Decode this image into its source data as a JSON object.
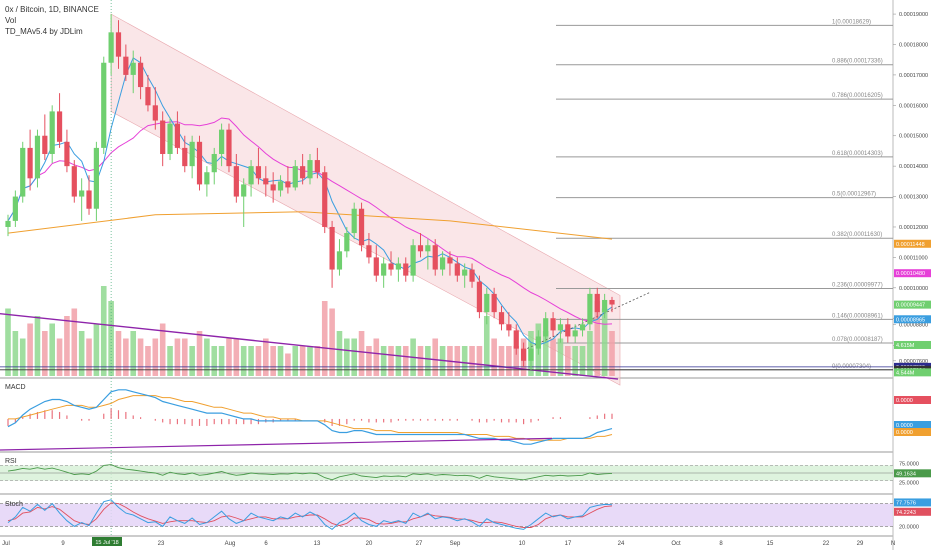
{
  "header": {
    "symbol_line": "0x / Bitcoin, 1D, BINANCE",
    "vol_label": "Vol",
    "indicator_label": "TD_MAv5.4 by JDLim"
  },
  "panes": {
    "macd_label": "MACD",
    "rsi_label": "RSI",
    "stoch_label": "Stoch"
  },
  "colors": {
    "up": "#6fcf6f",
    "down": "#e5505f",
    "up_vol": "#8fd88f",
    "down_vol": "#f1a0a8",
    "ma_blue": "#3a9ee0",
    "ma_magenta": "#e640d8",
    "ma_orange": "#f0a030",
    "trendline": "#8e24aa",
    "channel_fill": "#f7d6d8",
    "rsi_fill": "#d6f0d6",
    "stoch_fill": "#e4d4f7"
  },
  "x_axis": {
    "labels": [
      "Jul",
      "9",
      "15 Jul '18",
      "23",
      "Aug",
      "6",
      "13",
      "20",
      "27",
      "Sep",
      "10",
      "17",
      "24",
      "Oct",
      "8",
      "15",
      "22",
      "29",
      "N"
    ]
  },
  "price_axis": {
    "ticks": [
      "0.00019000",
      "0.00018000",
      "0.00017000",
      "0.00016000",
      "0.00015000",
      "0.00014000",
      "0.00013000",
      "0.00012000",
      "0.00011000",
      "0.00010000",
      "0.00009000",
      "0.00008800",
      "0.00008100",
      "0.00007600"
    ]
  },
  "fib_levels": [
    {
      "label": "1(0.00018629)",
      "value": 0.00018629
    },
    {
      "label": "0.886(0.00017336)",
      "value": 0.00017336
    },
    {
      "label": "0.786(0.00016205)",
      "value": 0.00016205
    },
    {
      "label": "0.618(0.00014303)",
      "value": 0.00014303
    },
    {
      "label": "0.5(0.00012967)",
      "value": 0.00012967
    },
    {
      "label": "0.382(0.00011630)",
      "value": 0.0001163
    },
    {
      "label": "0.236(0.00009977)",
      "value": 9.977e-05
    },
    {
      "label": "0.146(0.00008961)",
      "value": 8.961e-05
    },
    {
      "label": "0.078(0.00008187)",
      "value": 8.187e-05
    },
    {
      "label": "0(0.00007304)",
      "value": 7.304e-05
    }
  ],
  "price_tags": [
    {
      "text": "0.00011448",
      "color": "#f0a030"
    },
    {
      "text": "0.00010480",
      "color": "#e640d8"
    },
    {
      "text": "0.00009447",
      "color": "#6fcf6f"
    },
    {
      "text": "0.00008965",
      "color": "#3a9ee0"
    },
    {
      "text": "4.615M",
      "color": "#6fcf6f"
    },
    {
      "text": "0.00007399",
      "color": "#2b2b8f"
    },
    {
      "text": "0.00007304",
      "color": "#333333"
    },
    {
      "text": "4.544M",
      "color": "#6fcf6f"
    }
  ],
  "macd_tags": [
    {
      "text": "0.0000",
      "color": "#e5505f"
    },
    {
      "text": "0.0000",
      "color": "#3a9ee0"
    },
    {
      "text": "0.0000",
      "color": "#f0a030"
    }
  ],
  "rsi_axis": [
    "75.0000",
    "49.1634",
    "25.0000"
  ],
  "stoch_axis": [
    "80.0000",
    "77.7576",
    "74.2243",
    "20.0000"
  ],
  "chart_data": {
    "type": "candlestick",
    "title": "0x / Bitcoin, 1D, BINANCE",
    "ylim": [
      7.1e-05,
      0.000192
    ],
    "candles": [
      {
        "date": "Jul 1",
        "o": 0.00012,
        "h": 0.000124,
        "l": 0.000117,
        "c": 0.000122
      },
      {
        "date": "Jul 2",
        "o": 0.000122,
        "h": 0.000132,
        "l": 0.00012,
        "c": 0.00013
      },
      {
        "date": "Jul 3",
        "o": 0.00013,
        "h": 0.000148,
        "l": 0.000128,
        "c": 0.000146
      },
      {
        "date": "Jul 4",
        "o": 0.000146,
        "h": 0.000152,
        "l": 0.000132,
        "c": 0.000136
      },
      {
        "date": "Jul 5",
        "o": 0.000136,
        "h": 0.000152,
        "l": 0.000133,
        "c": 0.00015
      },
      {
        "date": "Jul 6",
        "o": 0.00015,
        "h": 0.000157,
        "l": 0.000142,
        "c": 0.000144
      },
      {
        "date": "Jul 7",
        "o": 0.000144,
        "h": 0.00016,
        "l": 0.000141,
        "c": 0.000158
      },
      {
        "date": "Jul 8",
        "o": 0.000158,
        "h": 0.000164,
        "l": 0.000146,
        "c": 0.000148
      },
      {
        "date": "Jul 9",
        "o": 0.000148,
        "h": 0.000152,
        "l": 0.000138,
        "c": 0.00014
      },
      {
        "date": "Jul 10",
        "o": 0.00014,
        "h": 0.000142,
        "l": 0.000128,
        "c": 0.00013
      },
      {
        "date": "Jul 11",
        "o": 0.00013,
        "h": 0.000136,
        "l": 0.000122,
        "c": 0.000132
      },
      {
        "date": "Jul 12",
        "o": 0.000132,
        "h": 0.000137,
        "l": 0.000124,
        "c": 0.000126
      },
      {
        "date": "Jul 13",
        "o": 0.000126,
        "h": 0.000148,
        "l": 0.000122,
        "c": 0.000146
      },
      {
        "date": "Jul 14",
        "o": 0.000146,
        "h": 0.000176,
        "l": 0.000144,
        "c": 0.000174
      },
      {
        "date": "Jul 15",
        "o": 0.000174,
        "h": 0.00019,
        "l": 0.00017,
        "c": 0.000184
      },
      {
        "date": "Jul 16",
        "o": 0.000184,
        "h": 0.000188,
        "l": 0.000172,
        "c": 0.000176
      },
      {
        "date": "Jul 17",
        "o": 0.000176,
        "h": 0.00018,
        "l": 0.000168,
        "c": 0.00017
      },
      {
        "date": "Jul 18",
        "o": 0.00017,
        "h": 0.000178,
        "l": 0.000164,
        "c": 0.000174
      },
      {
        "date": "Jul 19",
        "o": 0.000174,
        "h": 0.000176,
        "l": 0.000162,
        "c": 0.000166
      },
      {
        "date": "Jul 20",
        "o": 0.000166,
        "h": 0.00017,
        "l": 0.000158,
        "c": 0.00016
      },
      {
        "date": "Jul 21",
        "o": 0.00016,
        "h": 0.000166,
        "l": 0.000152,
        "c": 0.000155
      },
      {
        "date": "Jul 22",
        "o": 0.000155,
        "h": 0.000158,
        "l": 0.00014,
        "c": 0.000144
      },
      {
        "date": "Jul 23",
        "o": 0.000144,
        "h": 0.000156,
        "l": 0.000142,
        "c": 0.000154
      },
      {
        "date": "Jul 24",
        "o": 0.000154,
        "h": 0.000158,
        "l": 0.000144,
        "c": 0.000146
      },
      {
        "date": "Jul 25",
        "o": 0.000146,
        "h": 0.00015,
        "l": 0.000138,
        "c": 0.00014
      },
      {
        "date": "Jul 26",
        "o": 0.00014,
        "h": 0.00015,
        "l": 0.000136,
        "c": 0.000148
      },
      {
        "date": "Jul 27",
        "o": 0.000148,
        "h": 0.00015,
        "l": 0.000132,
        "c": 0.000134
      },
      {
        "date": "Jul 28",
        "o": 0.000134,
        "h": 0.00014,
        "l": 0.00013,
        "c": 0.000138
      },
      {
        "date": "Jul 29",
        "o": 0.000138,
        "h": 0.000146,
        "l": 0.000134,
        "c": 0.000144
      },
      {
        "date": "Jul 30",
        "o": 0.000144,
        "h": 0.000154,
        "l": 0.00014,
        "c": 0.000152
      },
      {
        "date": "Jul 31",
        "o": 0.000152,
        "h": 0.000154,
        "l": 0.000138,
        "c": 0.00014
      },
      {
        "date": "Aug 1",
        "o": 0.00014,
        "h": 0.000144,
        "l": 0.000128,
        "c": 0.00013
      },
      {
        "date": "Aug 2",
        "o": 0.00013,
        "h": 0.000136,
        "l": 0.00012,
        "c": 0.000134
      },
      {
        "date": "Aug 3",
        "o": 0.000134,
        "h": 0.000142,
        "l": 0.00013,
        "c": 0.00014
      },
      {
        "date": "Aug 4",
        "o": 0.00014,
        "h": 0.000146,
        "l": 0.000134,
        "c": 0.000136
      },
      {
        "date": "Aug 5",
        "o": 0.000136,
        "h": 0.00014,
        "l": 0.00013,
        "c": 0.000134
      },
      {
        "date": "Aug 6",
        "o": 0.000134,
        "h": 0.000138,
        "l": 0.000128,
        "c": 0.000132
      },
      {
        "date": "Aug 7",
        "o": 0.000132,
        "h": 0.000137,
        "l": 0.00013,
        "c": 0.000135
      },
      {
        "date": "Aug 8",
        "o": 0.000135,
        "h": 0.00014,
        "l": 0.000131,
        "c": 0.000133
      },
      {
        "date": "Aug 9",
        "o": 0.000133,
        "h": 0.000142,
        "l": 0.000132,
        "c": 0.00014
      },
      {
        "date": "Aug 10",
        "o": 0.00014,
        "h": 0.000144,
        "l": 0.000134,
        "c": 0.000136
      },
      {
        "date": "Aug 11",
        "o": 0.000136,
        "h": 0.000144,
        "l": 0.000134,
        "c": 0.000142
      },
      {
        "date": "Aug 12",
        "o": 0.000142,
        "h": 0.000146,
        "l": 0.000136,
        "c": 0.000138
      },
      {
        "date": "Aug 13",
        "o": 0.000138,
        "h": 0.00014,
        "l": 0.000118,
        "c": 0.00012
      },
      {
        "date": "Aug 14",
        "o": 0.00012,
        "h": 0.000122,
        "l": 0.0001,
        "c": 0.000106
      },
      {
        "date": "Aug 15",
        "o": 0.000106,
        "h": 0.000116,
        "l": 0.000104,
        "c": 0.000112
      },
      {
        "date": "Aug 16",
        "o": 0.000112,
        "h": 0.00012,
        "l": 0.00011,
        "c": 0.000118
      },
      {
        "date": "Aug 17",
        "o": 0.000118,
        "h": 0.000128,
        "l": 0.000116,
        "c": 0.000126
      },
      {
        "date": "Aug 18",
        "o": 0.000126,
        "h": 0.000128,
        "l": 0.000112,
        "c": 0.000114
      },
      {
        "date": "Aug 19",
        "o": 0.000114,
        "h": 0.000118,
        "l": 0.000108,
        "c": 0.00011
      },
      {
        "date": "Aug 20",
        "o": 0.00011,
        "h": 0.000114,
        "l": 0.000102,
        "c": 0.000104
      },
      {
        "date": "Aug 21",
        "o": 0.000104,
        "h": 0.00011,
        "l": 0.0001,
        "c": 0.000108
      },
      {
        "date": "Aug 22",
        "o": 0.000108,
        "h": 0.000112,
        "l": 0.000104,
        "c": 0.000106
      },
      {
        "date": "Aug 23",
        "o": 0.000106,
        "h": 0.00011,
        "l": 0.000102,
        "c": 0.000108
      },
      {
        "date": "Aug 24",
        "o": 0.000108,
        "h": 0.00011,
        "l": 0.000102,
        "c": 0.000104
      },
      {
        "date": "Aug 25",
        "o": 0.000104,
        "h": 0.000116,
        "l": 0.000102,
        "c": 0.000114
      },
      {
        "date": "Aug 26",
        "o": 0.000114,
        "h": 0.000118,
        "l": 0.00011,
        "c": 0.000112
      },
      {
        "date": "Aug 27",
        "o": 0.000112,
        "h": 0.000116,
        "l": 0.000106,
        "c": 0.000114
      },
      {
        "date": "Aug 28",
        "o": 0.000114,
        "h": 0.000116,
        "l": 0.000104,
        "c": 0.000106
      },
      {
        "date": "Aug 29",
        "o": 0.000106,
        "h": 0.000112,
        "l": 0.000104,
        "c": 0.00011
      },
      {
        "date": "Aug 30",
        "o": 0.00011,
        "h": 0.000112,
        "l": 0.000104,
        "c": 0.000108
      },
      {
        "date": "Aug 31",
        "o": 0.000108,
        "h": 0.00011,
        "l": 0.000102,
        "c": 0.000104
      },
      {
        "date": "Sep 1",
        "o": 0.000104,
        "h": 0.000108,
        "l": 0.0001,
        "c": 0.000106
      },
      {
        "date": "Sep 2",
        "o": 0.000106,
        "h": 0.000108,
        "l": 0.0001,
        "c": 0.000102
      },
      {
        "date": "Sep 3",
        "o": 0.000102,
        "h": 0.000104,
        "l": 9e-05,
        "c": 9.2e-05
      },
      {
        "date": "Sep 4",
        "o": 9.2e-05,
        "h": 0.0001,
        "l": 8.8e-05,
        "c": 9.8e-05
      },
      {
        "date": "Sep 5",
        "o": 9.8e-05,
        "h": 0.0001,
        "l": 9e-05,
        "c": 9.2e-05
      },
      {
        "date": "Sep 6",
        "o": 9.2e-05,
        "h": 9.4e-05,
        "l": 8.6e-05,
        "c": 8.8e-05
      },
      {
        "date": "Sep 7",
        "o": 8.8e-05,
        "h": 9.2e-05,
        "l": 8.4e-05,
        "c": 8.6e-05
      },
      {
        "date": "Sep 8",
        "o": 8.6e-05,
        "h": 8.8e-05,
        "l": 7.8e-05,
        "c": 8e-05
      },
      {
        "date": "Sep 9",
        "o": 8e-05,
        "h": 8.2e-05,
        "l": 7.4e-05,
        "c": 7.6e-05
      },
      {
        "date": "Sep 10",
        "o": 7.6e-05,
        "h": 8.2e-05,
        "l": 7.3e-05,
        "c": 8e-05
      },
      {
        "date": "Sep 11",
        "o": 8e-05,
        "h": 8.6e-05,
        "l": 7.8e-05,
        "c": 8.4e-05
      },
      {
        "date": "Sep 12",
        "o": 8.4e-05,
        "h": 9.2e-05,
        "l": 8.2e-05,
        "c": 9e-05
      },
      {
        "date": "Sep 13",
        "o": 9e-05,
        "h": 9.2e-05,
        "l": 8.4e-05,
        "c": 8.6e-05
      },
      {
        "date": "Sep 14",
        "o": 8.6e-05,
        "h": 9e-05,
        "l": 8.2e-05,
        "c": 8.8e-05
      },
      {
        "date": "Sep 15",
        "o": 8.8e-05,
        "h": 9e-05,
        "l": 8.2e-05,
        "c": 8.4e-05
      },
      {
        "date": "Sep 16",
        "o": 8.4e-05,
        "h": 8.8e-05,
        "l": 8.2e-05,
        "c": 8.6e-05
      },
      {
        "date": "Sep 17",
        "o": 8.6e-05,
        "h": 9e-05,
        "l": 8.4e-05,
        "c": 8.8e-05
      },
      {
        "date": "Sep 18",
        "o": 8.8e-05,
        "h": 0.0001,
        "l": 8.6e-05,
        "c": 9.8e-05
      },
      {
        "date": "Sep 19",
        "o": 9.8e-05,
        "h": 0.0001,
        "l": 9e-05,
        "c": 9.2e-05
      },
      {
        "date": "Sep 20",
        "o": 9.2e-05,
        "h": 9.8e-05,
        "l": 9e-05,
        "c": 9.6e-05
      },
      {
        "date": "Sep 21",
        "o": 9.6e-05,
        "h": 9.7e-05,
        "l": 9.2e-05,
        "c": 9.45e-05
      }
    ],
    "volume": [
      9,
      6,
      5,
      7,
      8,
      6,
      7,
      5,
      8,
      9,
      6,
      5,
      7,
      12,
      10,
      6,
      5,
      6,
      5,
      4,
      5,
      7,
      4,
      5,
      5,
      4,
      6,
      5,
      4,
      4,
      5,
      5,
      4,
      4,
      4,
      5,
      4,
      4,
      3,
      4,
      4,
      4,
      4,
      10,
      9,
      6,
      5,
      5,
      6,
      4,
      5,
      4,
      4,
      4,
      4,
      5,
      4,
      4,
      5,
      4,
      4,
      4,
      4,
      4,
      4,
      8,
      5,
      4,
      4,
      4,
      5,
      6,
      7,
      6,
      5,
      5,
      4,
      4,
      4,
      6,
      10,
      9,
      6
    ],
    "macd_line": [
      -0.4,
      -0.2,
      0.2,
      0.5,
      0.7,
      0.9,
      1.0,
      1.0,
      0.9,
      0.7,
      0.6,
      0.5,
      0.6,
      1.0,
      1.4,
      1.5,
      1.5,
      1.4,
      1.3,
      1.2,
      1.1,
      0.9,
      0.8,
      0.7,
      0.6,
      0.5,
      0.4,
      0.3,
      0.3,
      0.3,
      0.2,
      0.1,
      0.0,
      0.0,
      -0.1,
      -0.1,
      -0.1,
      -0.1,
      -0.1,
      -0.1,
      -0.1,
      -0.1,
      -0.1,
      -0.3,
      -0.6,
      -0.7,
      -0.7,
      -0.6,
      -0.6,
      -0.7,
      -0.8,
      -0.8,
      -0.8,
      -0.8,
      -0.8,
      -0.8,
      -0.8,
      -0.8,
      -0.8,
      -0.8,
      -0.8,
      -0.8,
      -0.8,
      -0.9,
      -1.0,
      -1.0,
      -1.0,
      -1.1,
      -1.1,
      -1.2,
      -1.3,
      -1.3,
      -1.2,
      -1.1,
      -1.0,
      -1.0,
      -1.0,
      -1.0,
      -1.0,
      -0.9,
      -0.7,
      -0.6,
      -0.5
    ],
    "signal_line": [
      0.0,
      0.0,
      0.1,
      0.2,
      0.3,
      0.4,
      0.5,
      0.6,
      0.7,
      0.7,
      0.7,
      0.6,
      0.6,
      0.7,
      0.8,
      1.0,
      1.1,
      1.2,
      1.2,
      1.2,
      1.2,
      1.1,
      1.1,
      1.0,
      0.9,
      0.9,
      0.8,
      0.7,
      0.6,
      0.6,
      0.5,
      0.4,
      0.3,
      0.3,
      0.2,
      0.1,
      0.1,
      0.0,
      0.0,
      0.0,
      -0.1,
      -0.1,
      -0.1,
      -0.1,
      -0.2,
      -0.3,
      -0.4,
      -0.5,
      -0.5,
      -0.5,
      -0.6,
      -0.6,
      -0.6,
      -0.7,
      -0.7,
      -0.7,
      -0.7,
      -0.7,
      -0.7,
      -0.7,
      -0.7,
      -0.7,
      -0.8,
      -0.8,
      -0.8,
      -0.8,
      -0.9,
      -0.9,
      -0.9,
      -1.0,
      -1.0,
      -1.1,
      -1.1,
      -1.1,
      -1.1,
      -1.1,
      -1.0,
      -1.0,
      -1.0,
      -1.0,
      -0.9,
      -0.9,
      -0.8
    ],
    "rsi": [
      55,
      58,
      62,
      60,
      64,
      60,
      63,
      58,
      52,
      46,
      48,
      46,
      55,
      70,
      72,
      64,
      60,
      58,
      55,
      52,
      50,
      44,
      52,
      48,
      46,
      50,
      44,
      46,
      50,
      54,
      48,
      44,
      46,
      50,
      48,
      47,
      46,
      48,
      47,
      50,
      48,
      50,
      48,
      38,
      32,
      40,
      44,
      48,
      42,
      40,
      38,
      42,
      41,
      42,
      40,
      48,
      46,
      48,
      44,
      46,
      45,
      43,
      44,
      42,
      36,
      44,
      40,
      38,
      36,
      34,
      32,
      36,
      40,
      44,
      42,
      44,
      42,
      43,
      44,
      50,
      46,
      48,
      49
    ],
    "stoch_k": [
      30,
      45,
      70,
      60,
      78,
      62,
      80,
      55,
      35,
      20,
      30,
      22,
      55,
      85,
      90,
      70,
      55,
      50,
      40,
      30,
      32,
      20,
      45,
      35,
      28,
      42,
      25,
      30,
      45,
      60,
      40,
      28,
      35,
      55,
      45,
      40,
      35,
      45,
      40,
      55,
      45,
      58,
      48,
      25,
      12,
      30,
      40,
      55,
      35,
      25,
      20,
      35,
      30,
      35,
      28,
      55,
      45,
      55,
      40,
      45,
      42,
      35,
      40,
      32,
      20,
      40,
      30,
      25,
      20,
      15,
      12,
      25,
      40,
      55,
      45,
      50,
      40,
      45,
      48,
      70,
      75,
      78,
      77
    ],
    "stoch_d": [
      35,
      40,
      55,
      58,
      70,
      66,
      72,
      65,
      50,
      35,
      28,
      25,
      40,
      65,
      82,
      80,
      70,
      58,
      48,
      40,
      34,
      28,
      32,
      35,
      35,
      35,
      32,
      30,
      35,
      45,
      48,
      42,
      35,
      40,
      45,
      45,
      40,
      40,
      40,
      45,
      47,
      50,
      50,
      40,
      28,
      22,
      28,
      42,
      42,
      38,
      28,
      26,
      28,
      32,
      32,
      40,
      45,
      52,
      48,
      46,
      44,
      40,
      39,
      36,
      30,
      30,
      32,
      30,
      25,
      20,
      17,
      17,
      25,
      40,
      47,
      50,
      45,
      45,
      45,
      55,
      65,
      72,
      74
    ]
  }
}
